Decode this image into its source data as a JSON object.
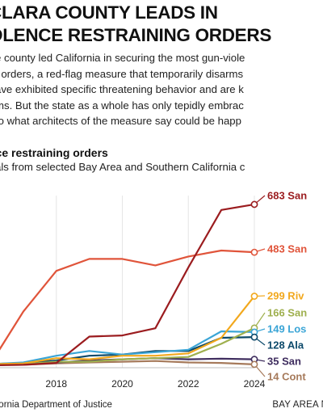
{
  "headline": {
    "line1": "CLARA COUNTY LEADS IN",
    "line2": "OLENCE RESTRAINING ORDERS"
  },
  "dek": [
    "e county led California in securing the most gun-viole",
    ", orders, a red-flag measure that temporarily disarms",
    "ave exhibited specific threatening behavior and are k",
    "ms. But the state as a whole has only tepidly embrac",
    "to what architects of the measure say could be happ"
  ],
  "footer": {
    "source": "lifornia Department of Justice",
    "credit": "BAY AREA NE"
  },
  "colors": {
    "gridline": "#e6e6e6",
    "marker_fill": "#ffffff"
  },
  "chart_data": {
    "type": "line",
    "title": "nce restraining orders",
    "subtitle": "als from selected Bay Area and Southern California c",
    "x": [
      2016,
      2017,
      2018,
      2019,
      2020,
      2021,
      2022,
      2023,
      2024
    ],
    "x_ticks": [
      "2018",
      "2020",
      "2022",
      "2024"
    ],
    "ylim": [
      0,
      720
    ],
    "grid": "vertical",
    "series": [
      {
        "label": "683 San",
        "color": "#9b1c1f",
        "values": [
          10,
          12,
          20,
          130,
          135,
          165,
          420,
          660,
          683
        ]
      },
      {
        "label": "483 San",
        "color": "#e0543a",
        "values": [
          15,
          235,
          405,
          455,
          455,
          428,
          465,
          490,
          483
        ]
      },
      {
        "label": "299 Riv",
        "color": "#f2a81d",
        "values": [
          15,
          18,
          40,
          35,
          50,
          50,
          60,
          125,
          299
        ]
      },
      {
        "label": "166 San",
        "color": "#9fb04f",
        "values": [
          12,
          15,
          25,
          25,
          35,
          40,
          45,
          100,
          166
        ]
      },
      {
        "label": "149 Los",
        "color": "#3ba5d6",
        "values": [
          15,
          22,
          50,
          70,
          55,
          65,
          75,
          152,
          149
        ]
      },
      {
        "label": "128 Ala",
        "color": "#0d4a6b",
        "values": [
          15,
          20,
          30,
          50,
          55,
          70,
          70,
          125,
          128
        ]
      },
      {
        "label": "35 San",
        "color": "#3e2c5e",
        "values": [
          10,
          15,
          22,
          30,
          35,
          40,
          35,
          38,
          35
        ]
      },
      {
        "label": "14 Cont",
        "color": "#a67a5b",
        "values": [
          10,
          12,
          18,
          22,
          25,
          28,
          22,
          20,
          14
        ]
      }
    ]
  }
}
